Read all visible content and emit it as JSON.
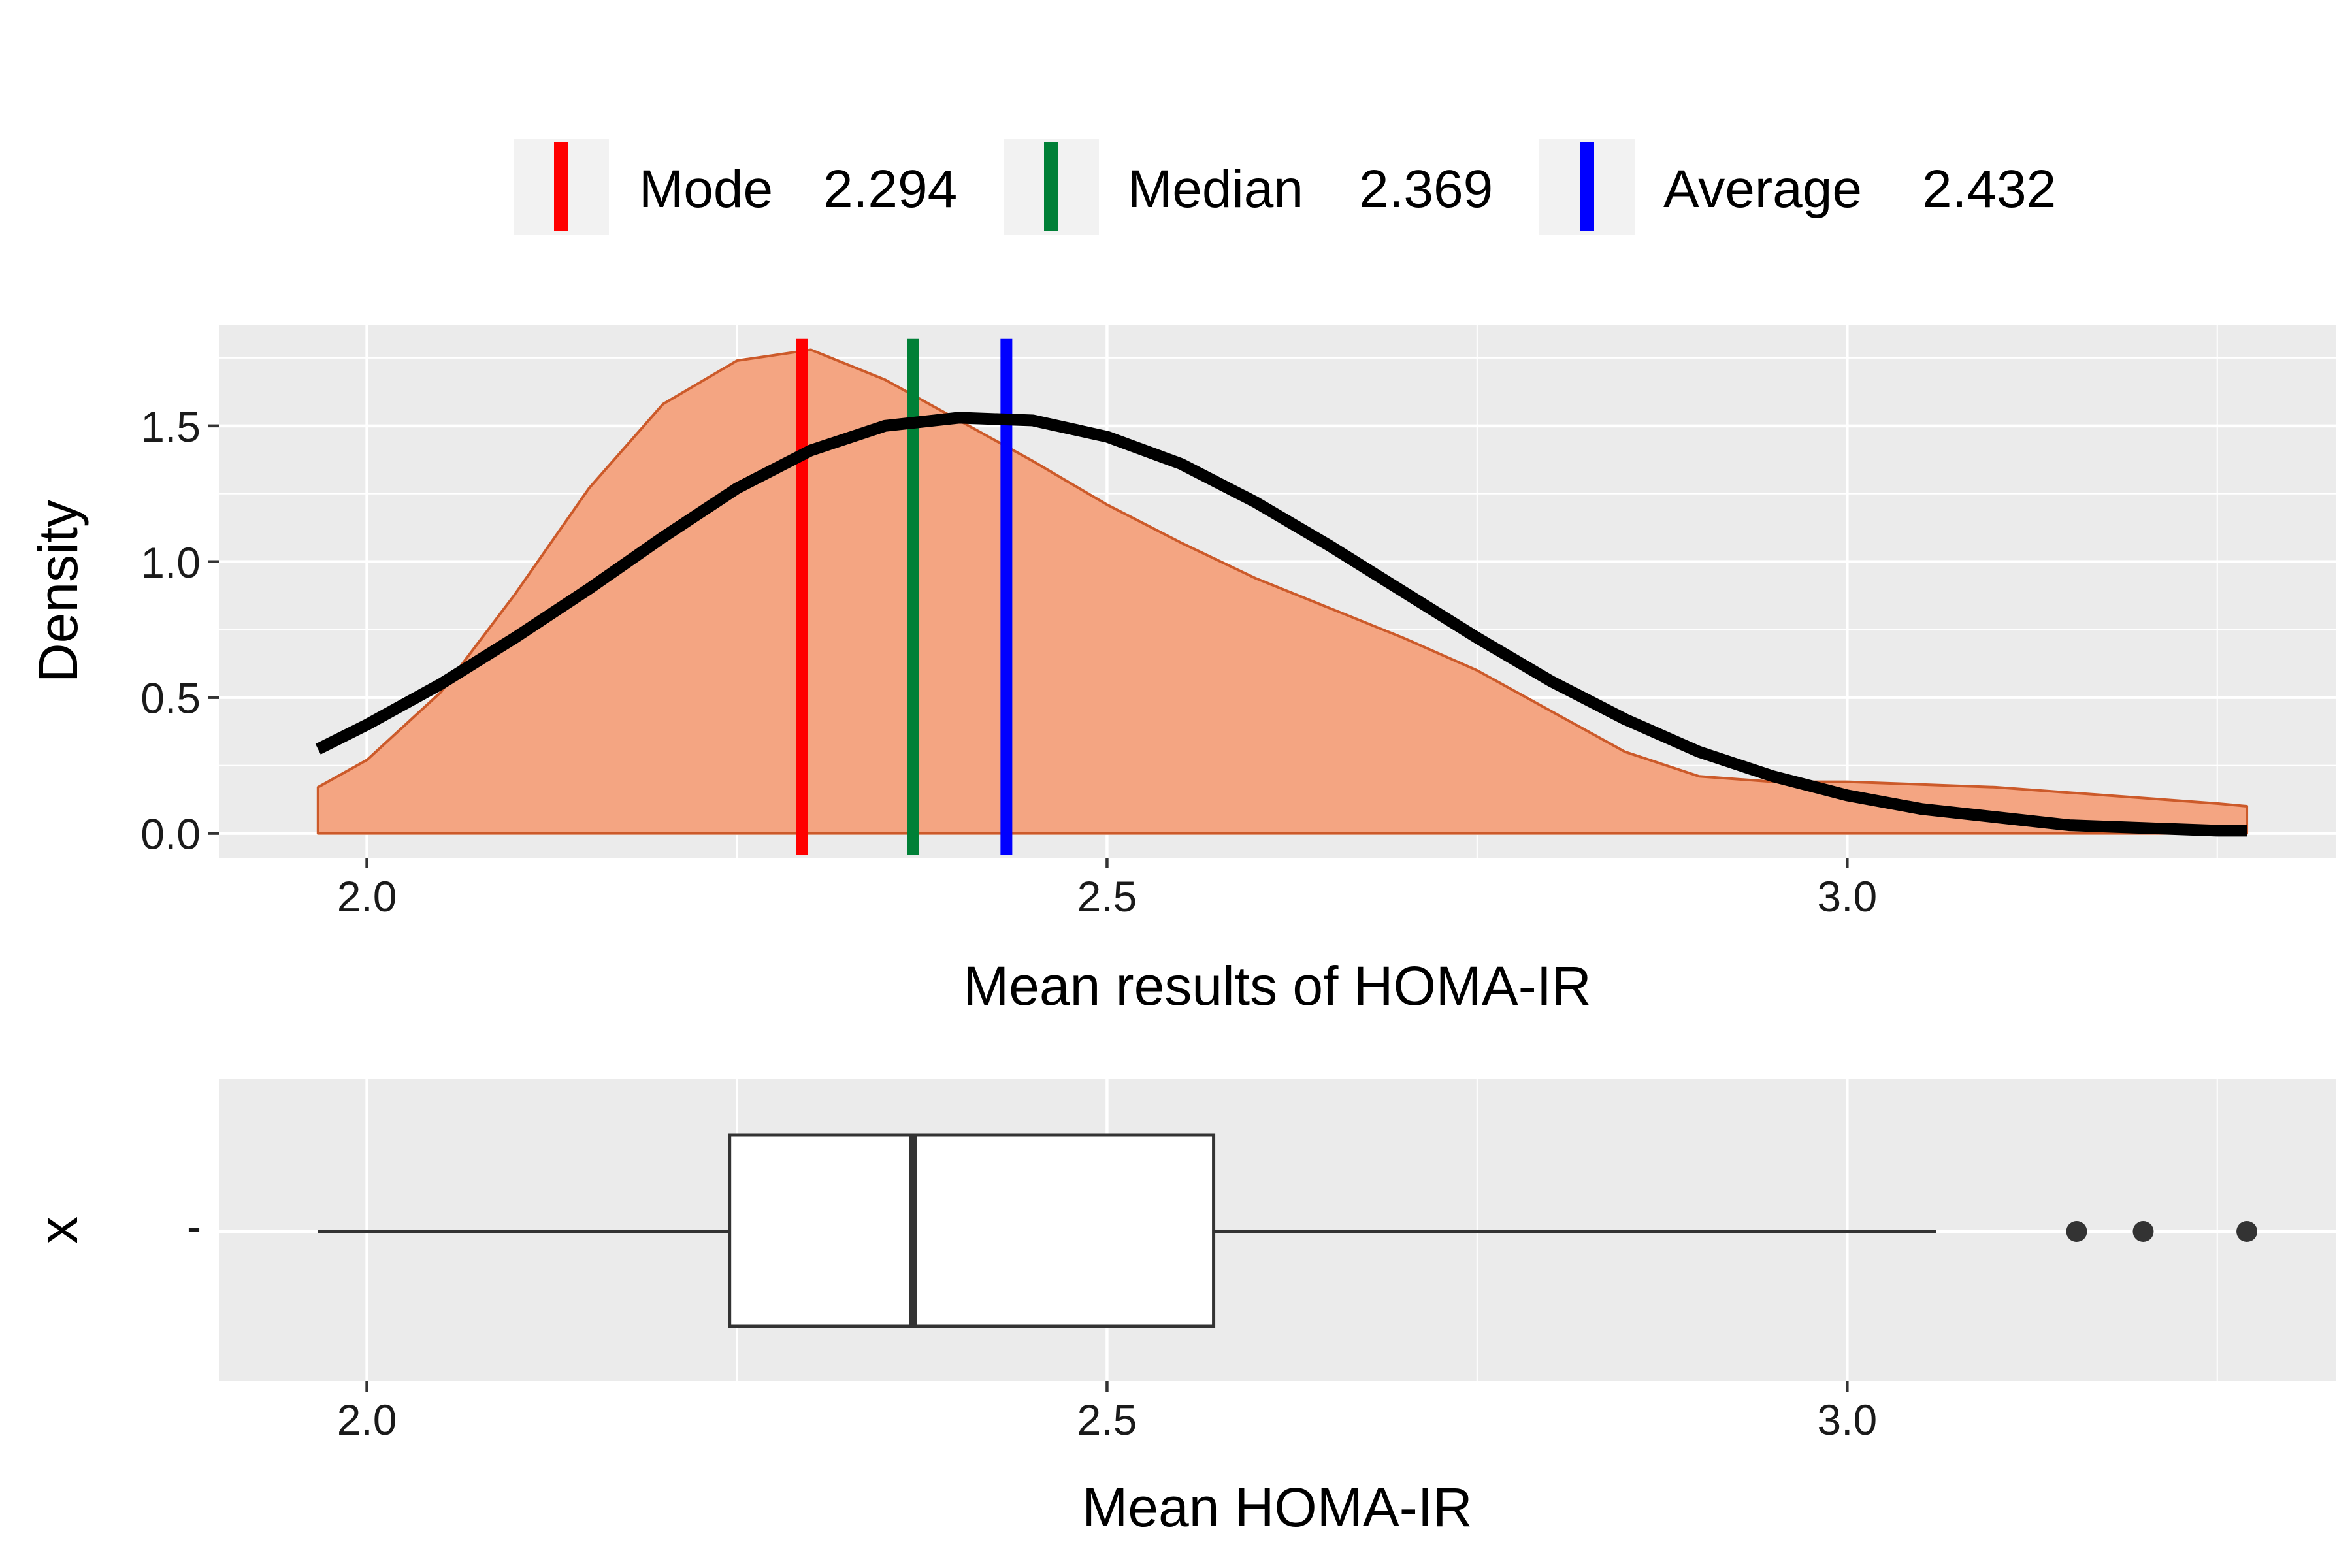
{
  "chart_data": [
    {
      "type": "area",
      "xlabel": "Mean results of HOMA-IR",
      "ylabel": "Density",
      "xlim": [
        1.9,
        3.33
      ],
      "ylim": [
        -0.09,
        1.87
      ],
      "x_ticks": [
        2.0,
        2.5,
        3.0
      ],
      "x_tick_labels": [
        "2.0",
        "2.5",
        "3.0"
      ],
      "y_ticks": [
        0.0,
        0.5,
        1.0,
        1.5
      ],
      "y_tick_labels": [
        "0.0",
        "0.5",
        "1.0",
        "1.5"
      ],
      "grid": true,
      "legend_position": "top",
      "legend": [
        {
          "label": "Mode",
          "value": "2.294",
          "color": "#ff0000"
        },
        {
          "label": "Median",
          "value": "2.369",
          "color": "#008037"
        },
        {
          "label": "Average",
          "value": "2.432",
          "color": "#0000ff"
        }
      ],
      "reference_lines": [
        {
          "x": 2.294,
          "color": "#ff0000"
        },
        {
          "x": 2.369,
          "color": "#008037"
        },
        {
          "x": 2.432,
          "color": "#0000ff"
        }
      ],
      "series": [
        {
          "kind": "density-area",
          "fill": "#f4a582",
          "stroke": "#cc5a2a",
          "x": [
            1.967,
            2.0,
            2.05,
            2.1,
            2.15,
            2.2,
            2.25,
            2.3,
            2.35,
            2.4,
            2.45,
            2.5,
            2.55,
            2.6,
            2.65,
            2.7,
            2.75,
            2.8,
            2.85,
            2.9,
            2.95,
            3.0,
            3.05,
            3.1,
            3.15,
            3.2,
            3.25,
            3.27
          ],
          "y": [
            0.17,
            0.27,
            0.52,
            0.88,
            1.27,
            1.58,
            1.74,
            1.78,
            1.67,
            1.52,
            1.37,
            1.21,
            1.07,
            0.94,
            0.83,
            0.72,
            0.6,
            0.45,
            0.3,
            0.21,
            0.19,
            0.19,
            0.18,
            0.17,
            0.15,
            0.13,
            0.11,
            0.1
          ]
        },
        {
          "kind": "normal-curve",
          "color": "#000000",
          "x": [
            1.967,
            2.0,
            2.05,
            2.1,
            2.15,
            2.2,
            2.25,
            2.3,
            2.35,
            2.4,
            2.45,
            2.5,
            2.55,
            2.6,
            2.65,
            2.7,
            2.75,
            2.8,
            2.85,
            2.9,
            2.95,
            3.0,
            3.05,
            3.1,
            3.15,
            3.2,
            3.25,
            3.27
          ],
          "y": [
            0.31,
            0.4,
            0.55,
            0.72,
            0.9,
            1.09,
            1.27,
            1.41,
            1.5,
            1.53,
            1.52,
            1.46,
            1.36,
            1.22,
            1.06,
            0.89,
            0.72,
            0.56,
            0.42,
            0.3,
            0.21,
            0.14,
            0.09,
            0.06,
            0.03,
            0.02,
            0.01,
            0.01
          ]
        }
      ]
    },
    {
      "type": "boxplot",
      "xlabel": "Mean HOMA-IR",
      "ylabel": "x",
      "y_tick_labels": [
        "-"
      ],
      "xlim": [
        1.9,
        3.33
      ],
      "x_ticks": [
        2.0,
        2.5,
        3.0
      ],
      "x_tick_labels": [
        "2.0",
        "2.5",
        "3.0"
      ],
      "grid": true,
      "box": {
        "whisker_low": 1.967,
        "q1": 2.245,
        "median": 2.369,
        "q3": 2.572,
        "whisker_high": 3.06
      },
      "outliers": [
        3.155,
        3.2,
        3.27
      ]
    }
  ]
}
